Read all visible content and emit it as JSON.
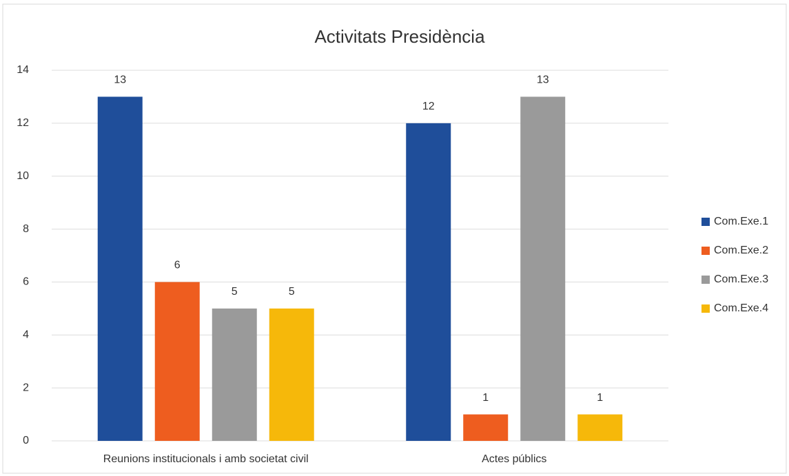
{
  "chart_data": {
    "type": "bar",
    "title": "Activitats Presidència",
    "categories": [
      "Reunions institucionals i amb societat civil",
      "Actes públics"
    ],
    "series": [
      {
        "name": "Com.Exe.1",
        "color": "#1f4e9a",
        "values": [
          13,
          12
        ]
      },
      {
        "name": "Com.Exe.2",
        "color": "#ee5d1f",
        "values": [
          6,
          1
        ]
      },
      {
        "name": "Com.Exe.3",
        "color": "#9a9a9a",
        "values": [
          5,
          13
        ]
      },
      {
        "name": "Com.Exe.4",
        "color": "#f6b80a",
        "values": [
          5,
          1
        ]
      }
    ],
    "ylim": [
      0,
      14
    ],
    "yticks": [
      0,
      2,
      4,
      6,
      8,
      10,
      12,
      14
    ],
    "grid": true,
    "legend": "right"
  }
}
